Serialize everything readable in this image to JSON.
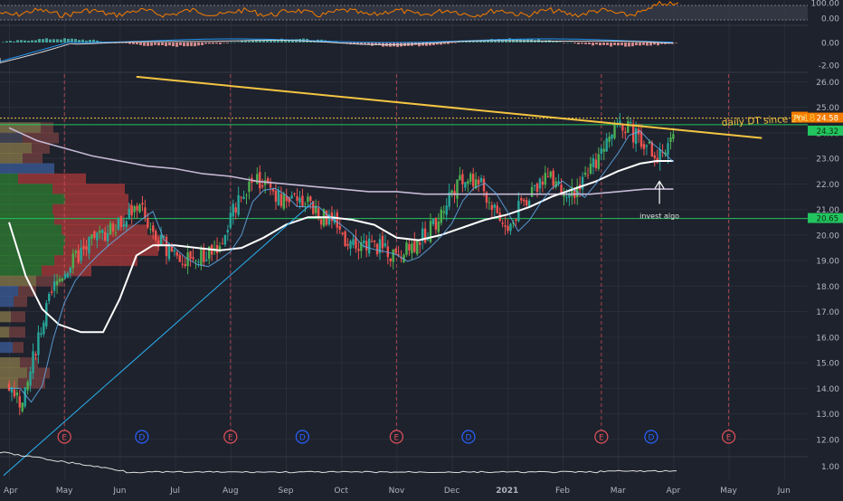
{
  "colors": {
    "background": "#1e222d",
    "grid": "#2a2e39",
    "up": "#26a69a",
    "up_alt": "#4caf50",
    "down": "#ef5350",
    "axis_text": "#b2b5be",
    "trendline": "#f5c542",
    "green_line": "#22c55e",
    "blue_line": "#2196f3",
    "white_ma": "#ffffff",
    "purple_ma": "#c6b9d6",
    "rsi": "#f57c00",
    "pre_badge": "#f57c00",
    "price_badge": "#22c55e",
    "earnings": "#e0525a",
    "dividend": "#2962ff"
  },
  "chart_data": {
    "type": "candlestick",
    "title": "",
    "x_labels": [
      "Apr",
      "May",
      "Jun",
      "Jul",
      "Aug",
      "Sep",
      "Oct",
      "Nov",
      "Dec",
      "2021",
      "Feb",
      "Mar",
      "Apr",
      "May",
      "Jun"
    ],
    "y_ticks": [
      "26.00",
      "25.00",
      "24.00",
      "23.00",
      "22.00",
      "21.00",
      "20.00",
      "19.00",
      "18.00",
      "17.00",
      "16.00",
      "15.00",
      "14.00",
      "13.00",
      "12.00"
    ],
    "ylim": [
      11.5,
      26.3
    ],
    "rsi_panel": {
      "ticks": [
        "100.00",
        "0.00"
      ],
      "ylim": [
        0,
        100
      ]
    },
    "macd_panel": {
      "ticks": [
        "0.00",
        "-2.00"
      ],
      "ylim": [
        -2.5,
        1.5
      ]
    },
    "bottom_panel": {
      "ticks": [
        "1.00"
      ]
    },
    "price_labels": {
      "pre_tag": "Pre",
      "pre_value": "24.58",
      "last_value": "24.32",
      "support_value": "20.65"
    },
    "annotations": {
      "trendline_text": "daily DT since 2018",
      "arrow_text": "invest algo"
    },
    "event_markers": [
      {
        "label": "E",
        "kind": "earnings",
        "date_index": 1
      },
      {
        "label": "D",
        "kind": "dividend",
        "date_index": 2.4
      },
      {
        "label": "E",
        "kind": "earnings",
        "date_index": 4
      },
      {
        "label": "D",
        "kind": "dividend",
        "date_index": 5.3
      },
      {
        "label": "E",
        "kind": "earnings",
        "date_index": 7
      },
      {
        "label": "D",
        "kind": "dividend",
        "date_index": 8.3
      },
      {
        "label": "E",
        "kind": "earnings",
        "date_index": 10.7
      },
      {
        "label": "D",
        "kind": "dividend",
        "date_index": 11.6
      },
      {
        "label": "E",
        "kind": "earnings",
        "date_index": 13
      }
    ],
    "price_path": [
      [
        0,
        14.2
      ],
      [
        0.25,
        13.3
      ],
      [
        0.5,
        15.8
      ],
      [
        0.8,
        17.9
      ],
      [
        1.0,
        18.6
      ],
      [
        1.3,
        19.3
      ],
      [
        1.6,
        19.9
      ],
      [
        1.9,
        20.4
      ],
      [
        2.2,
        20.9
      ],
      [
        2.4,
        21.2
      ],
      [
        2.5,
        20.1
      ],
      [
        2.8,
        19.6
      ],
      [
        3.0,
        19.2
      ],
      [
        3.3,
        18.9
      ],
      [
        3.6,
        19.3
      ],
      [
        3.9,
        19.8
      ],
      [
        4.0,
        20.6
      ],
      [
        4.2,
        21.8
      ],
      [
        4.5,
        22.1
      ],
      [
        4.8,
        21.7
      ],
      [
        5.0,
        21.2
      ],
      [
        5.3,
        21.4
      ],
      [
        5.6,
        20.8
      ],
      [
        5.9,
        20.4
      ],
      [
        6.1,
        19.8
      ],
      [
        6.4,
        19.6
      ],
      [
        6.7,
        19.5
      ],
      [
        7.0,
        19.1
      ],
      [
        7.2,
        19.4
      ],
      [
        7.5,
        20.0
      ],
      [
        7.8,
        20.8
      ],
      [
        8.0,
        21.8
      ],
      [
        8.3,
        22.3
      ],
      [
        8.5,
        22.0
      ],
      [
        8.7,
        21.3
      ],
      [
        8.9,
        20.6
      ],
      [
        9.0,
        20.1
      ],
      [
        9.2,
        21.0
      ],
      [
        9.5,
        21.9
      ],
      [
        9.7,
        22.4
      ],
      [
        10.0,
        21.9
      ],
      [
        10.2,
        21.6
      ],
      [
        10.4,
        22.4
      ],
      [
        10.7,
        23.2
      ],
      [
        10.9,
        24.0
      ],
      [
        11.1,
        24.4
      ],
      [
        11.3,
        23.9
      ],
      [
        11.5,
        23.6
      ],
      [
        11.7,
        23.1
      ],
      [
        11.85,
        23.0
      ],
      [
        12.0,
        24.3
      ]
    ],
    "white_ma": [
      [
        0,
        20.5
      ],
      [
        0.3,
        18.4
      ],
      [
        0.6,
        17.1
      ],
      [
        0.9,
        16.5
      ],
      [
        1.3,
        16.2
      ],
      [
        1.7,
        16.2
      ],
      [
        2.0,
        17.5
      ],
      [
        2.3,
        19.2
      ],
      [
        2.6,
        19.6
      ],
      [
        3.0,
        19.6
      ],
      [
        3.4,
        19.5
      ],
      [
        3.8,
        19.4
      ],
      [
        4.2,
        19.5
      ],
      [
        4.6,
        19.9
      ],
      [
        5.0,
        20.4
      ],
      [
        5.4,
        20.7
      ],
      [
        5.8,
        20.7
      ],
      [
        6.2,
        20.6
      ],
      [
        6.6,
        20.4
      ],
      [
        7.0,
        19.9
      ],
      [
        7.4,
        19.8
      ],
      [
        7.8,
        20.0
      ],
      [
        8.2,
        20.3
      ],
      [
        8.6,
        20.6
      ],
      [
        9.0,
        20.8
      ],
      [
        9.4,
        21.1
      ],
      [
        9.8,
        21.5
      ],
      [
        10.2,
        21.8
      ],
      [
        10.6,
        22.1
      ],
      [
        11.0,
        22.5
      ],
      [
        11.4,
        22.8
      ],
      [
        11.7,
        22.9
      ],
      [
        12.0,
        22.9
      ]
    ],
    "purple_ma": [
      [
        0,
        24.2
      ],
      [
        0.5,
        23.7
      ],
      [
        1.0,
        23.4
      ],
      [
        1.5,
        23.1
      ],
      [
        2.0,
        22.9
      ],
      [
        2.5,
        22.7
      ],
      [
        3.0,
        22.6
      ],
      [
        3.5,
        22.4
      ],
      [
        4.0,
        22.3
      ],
      [
        4.5,
        22.1
      ],
      [
        5.0,
        22.0
      ],
      [
        5.5,
        21.9
      ],
      [
        6.0,
        21.8
      ],
      [
        6.5,
        21.7
      ],
      [
        7.0,
        21.7
      ],
      [
        7.5,
        21.6
      ],
      [
        8.0,
        21.6
      ],
      [
        8.5,
        21.6
      ],
      [
        9.0,
        21.6
      ],
      [
        9.5,
        21.6
      ],
      [
        10.0,
        21.6
      ],
      [
        10.5,
        21.6
      ],
      [
        11.0,
        21.7
      ],
      [
        11.5,
        21.8
      ],
      [
        12.0,
        21.8
      ]
    ],
    "trendline_points": [
      [
        2.3,
        26.2
      ],
      [
        13.6,
        23.8
      ]
    ],
    "blue_trendline_points": [
      [
        -0.1,
        12.0
      ],
      [
        5.5,
        21.3
      ]
    ],
    "horizontal_lines": [
      {
        "name": "pre-line",
        "value": 24.58,
        "style": "dotted",
        "color": "#f5c542"
      },
      {
        "name": "green-upper-line",
        "value": 24.32,
        "color": "#22c55e"
      },
      {
        "name": "green-support-line",
        "value": 20.65,
        "color": "#22c55e"
      }
    ],
    "arrow_point": [
      11.75,
      22.0
    ]
  }
}
